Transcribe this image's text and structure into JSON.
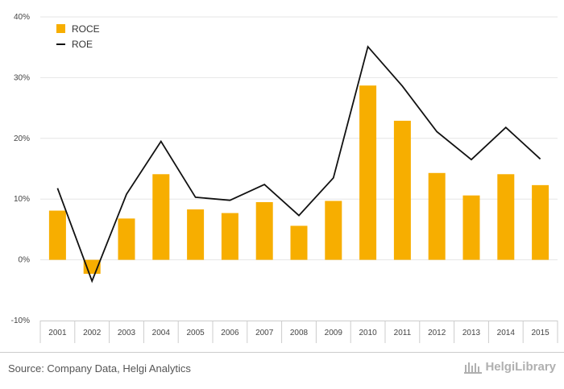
{
  "chart_data": {
    "type": "bar",
    "categories": [
      "2001",
      "2002",
      "2003",
      "2004",
      "2005",
      "2006",
      "2007",
      "2008",
      "2009",
      "2010",
      "2011",
      "2012",
      "2013",
      "2014",
      "2015"
    ],
    "series": [
      {
        "name": "ROCE",
        "type": "bar",
        "color": "#F7AE00",
        "values": [
          8.1,
          -2.3,
          6.8,
          14.1,
          8.3,
          7.7,
          9.5,
          5.6,
          9.7,
          28.7,
          22.9,
          14.3,
          10.6,
          14.1,
          12.3
        ]
      },
      {
        "name": "ROE",
        "type": "line",
        "color": "#111111",
        "values": [
          11.8,
          -3.5,
          10.8,
          19.5,
          10.3,
          9.8,
          12.4,
          7.3,
          13.5,
          35.1,
          28.6,
          21.1,
          16.5,
          21.8,
          16.6
        ]
      }
    ],
    "yticks": [
      "-10%",
      "0%",
      "10%",
      "20%",
      "30%",
      "40%"
    ],
    "ylim": [
      -10,
      40
    ],
    "grid": true,
    "legend_position": "top-left"
  },
  "footer": {
    "source": "Source: Company Data, Helgi Analytics",
    "logo_text": "HelgiLibrary"
  },
  "colors": {
    "grid": "#e6e6e6",
    "axis": "#cccccc"
  }
}
